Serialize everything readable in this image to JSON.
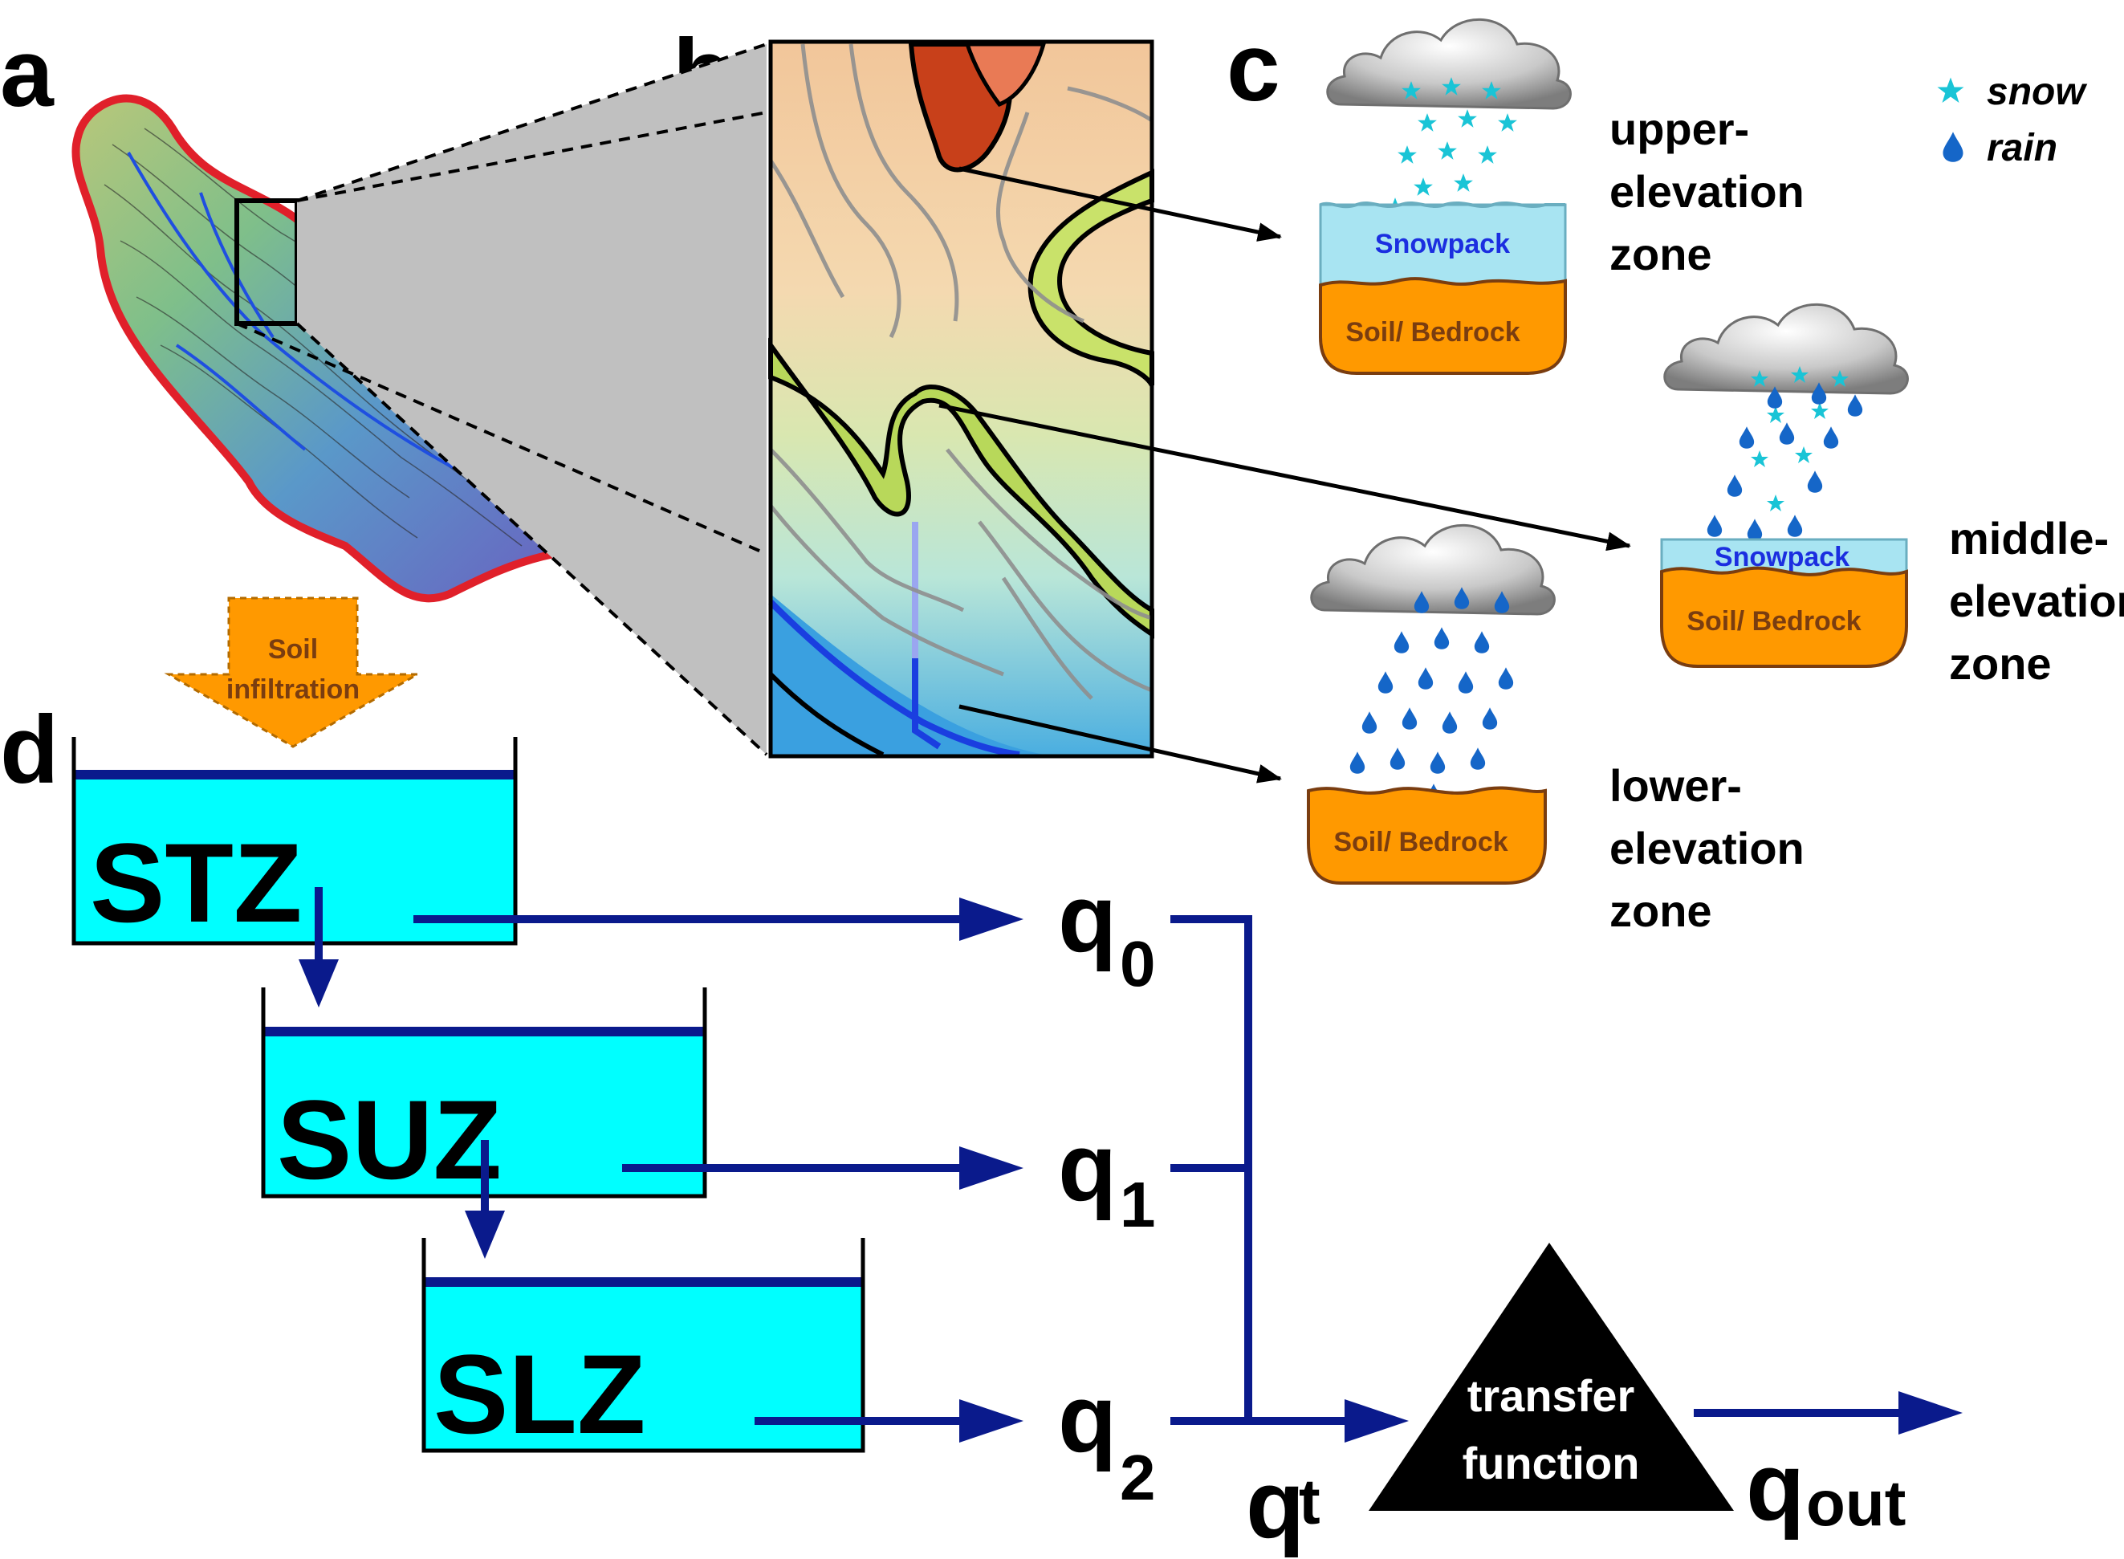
{
  "panels": {
    "a": "a",
    "b": "b",
    "c": "c",
    "d": "d"
  },
  "legend": {
    "snow": "snow",
    "rain": "rain",
    "snow_icon": "snowflake-icon",
    "rain_icon": "raindrop-icon"
  },
  "zones": {
    "upper": [
      "upper-",
      "elevation",
      "zone"
    ],
    "middle": [
      "middle-",
      "elevation",
      "zone"
    ],
    "lower": [
      "lower-",
      "elevation",
      "zone"
    ]
  },
  "bucket_labels": {
    "snowpack": "Snowpack",
    "soil": "Soil/ Bedrock"
  },
  "infiltration": [
    "Soil",
    "infiltration"
  ],
  "tanks": {
    "stz": "STZ",
    "suz": "SUZ",
    "slz": "SLZ"
  },
  "flows": {
    "q": "q",
    "q0_sub": "0",
    "q1_sub": "1",
    "q2_sub": "2",
    "qt_sub": "t",
    "qout_sub": "out"
  },
  "transfer": [
    "transfer",
    "function"
  ],
  "colors": {
    "arrow_blue": "#0a1a8c",
    "tank_fill": "#00ffff",
    "soil_orange": "#ff9900",
    "snow_blue": "#a8e4f2",
    "snow_star": "#19c4d6",
    "rain_drop": "#1566c8",
    "catchment_border": "#e0202a"
  }
}
